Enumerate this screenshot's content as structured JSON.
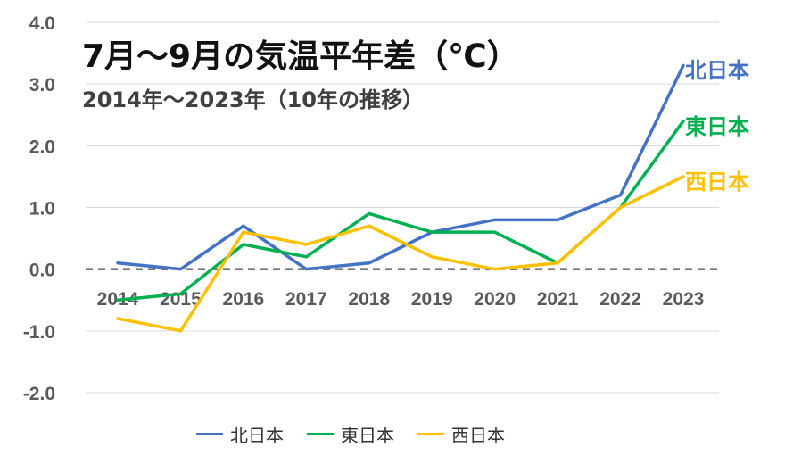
{
  "title": "7月～9月の気温平年差（℃）",
  "subtitle": "2014年～2023年（10年の推移）",
  "chart_data": {
    "type": "line",
    "categories": [
      "2014",
      "2015",
      "2016",
      "2017",
      "2018",
      "2019",
      "2020",
      "2021",
      "2022",
      "2023"
    ],
    "y_ticks": [
      "4.0",
      "3.0",
      "2.0",
      "1.0",
      "0.0",
      "-1.0",
      "-2.0"
    ],
    "ylim": [
      -2.0,
      4.0
    ],
    "grid": true,
    "zero_line": "dashed",
    "legend_position": "bottom",
    "series": [
      {
        "name": "北日本",
        "color": "#4472C4",
        "values": [
          0.1,
          0.0,
          0.7,
          0.0,
          0.1,
          0.6,
          0.8,
          0.8,
          1.2,
          3.3
        ]
      },
      {
        "name": "東日本",
        "color": "#00B050",
        "values": [
          -0.5,
          -0.4,
          0.4,
          0.2,
          0.9,
          0.6,
          0.6,
          0.1,
          1.0,
          2.4
        ]
      },
      {
        "name": "西日本",
        "color": "#FFC000",
        "values": [
          -0.8,
          -1.0,
          0.6,
          0.4,
          0.7,
          0.2,
          0.0,
          0.1,
          1.0,
          1.5
        ]
      }
    ]
  }
}
